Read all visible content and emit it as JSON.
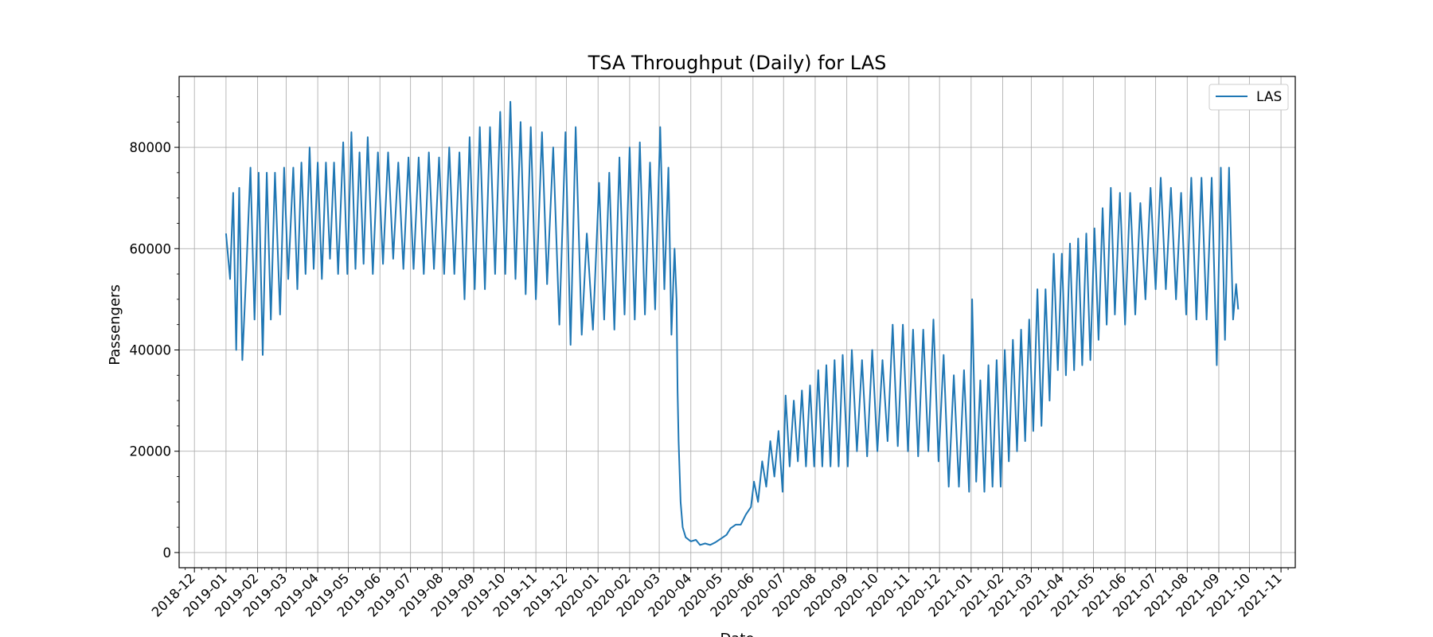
{
  "chart_data": {
    "type": "line",
    "title": "TSA Throughput (Daily) for LAS",
    "xlabel": "Date",
    "ylabel": "Passengers",
    "xlim": [
      "2018-11-16",
      "2021-11-15"
    ],
    "ylim": [
      -3000,
      94000
    ],
    "x_ticks": [
      "2018-12",
      "2019-01",
      "2019-02",
      "2019-03",
      "2019-04",
      "2019-05",
      "2019-06",
      "2019-07",
      "2019-08",
      "2019-09",
      "2019-10",
      "2019-11",
      "2019-12",
      "2020-01",
      "2020-02",
      "2020-03",
      "2020-04",
      "2020-05",
      "2020-06",
      "2020-07",
      "2020-08",
      "2020-09",
      "2020-10",
      "2020-11",
      "2020-12",
      "2021-01",
      "2021-02",
      "2021-03",
      "2021-04",
      "2021-05",
      "2021-06",
      "2021-07",
      "2021-08",
      "2021-09",
      "2021-10",
      "2021-11"
    ],
    "y_ticks": [
      0,
      20000,
      40000,
      60000,
      80000
    ],
    "grid": true,
    "legend_position": "top-right",
    "series": [
      {
        "name": "LAS",
        "color": "#1f77b4",
        "points": [
          [
            "2019-01-01",
            63000
          ],
          [
            "2019-01-05",
            54000
          ],
          [
            "2019-01-08",
            71000
          ],
          [
            "2019-01-11",
            40000
          ],
          [
            "2019-01-14",
            72000
          ],
          [
            "2019-01-17",
            38000
          ],
          [
            "2019-01-21",
            56000
          ],
          [
            "2019-01-25",
            76000
          ],
          [
            "2019-01-29",
            46000
          ],
          [
            "2019-02-02",
            75000
          ],
          [
            "2019-02-06",
            39000
          ],
          [
            "2019-02-10",
            75000
          ],
          [
            "2019-02-14",
            46000
          ],
          [
            "2019-02-18",
            75000
          ],
          [
            "2019-02-23",
            47000
          ],
          [
            "2019-02-27",
            76000
          ],
          [
            "2019-03-03",
            54000
          ],
          [
            "2019-03-08",
            76000
          ],
          [
            "2019-03-12",
            52000
          ],
          [
            "2019-03-16",
            77000
          ],
          [
            "2019-03-20",
            55000
          ],
          [
            "2019-03-24",
            80000
          ],
          [
            "2019-03-28",
            56000
          ],
          [
            "2019-04-01",
            77000
          ],
          [
            "2019-04-05",
            54000
          ],
          [
            "2019-04-09",
            77000
          ],
          [
            "2019-04-13",
            58000
          ],
          [
            "2019-04-17",
            77000
          ],
          [
            "2019-04-21",
            55000
          ],
          [
            "2019-04-26",
            81000
          ],
          [
            "2019-04-30",
            55000
          ],
          [
            "2019-05-04",
            83000
          ],
          [
            "2019-05-08",
            56000
          ],
          [
            "2019-05-12",
            79000
          ],
          [
            "2019-05-16",
            57000
          ],
          [
            "2019-05-20",
            82000
          ],
          [
            "2019-05-25",
            55000
          ],
          [
            "2019-05-30",
            79000
          ],
          [
            "2019-06-04",
            57000
          ],
          [
            "2019-06-09",
            79000
          ],
          [
            "2019-06-14",
            58000
          ],
          [
            "2019-06-19",
            77000
          ],
          [
            "2019-06-24",
            56000
          ],
          [
            "2019-06-29",
            78000
          ],
          [
            "2019-07-04",
            56000
          ],
          [
            "2019-07-09",
            78000
          ],
          [
            "2019-07-14",
            55000
          ],
          [
            "2019-07-19",
            79000
          ],
          [
            "2019-07-24",
            56000
          ],
          [
            "2019-07-29",
            78000
          ],
          [
            "2019-08-03",
            55000
          ],
          [
            "2019-08-08",
            80000
          ],
          [
            "2019-08-13",
            55000
          ],
          [
            "2019-08-18",
            79000
          ],
          [
            "2019-08-23",
            50000
          ],
          [
            "2019-08-28",
            82000
          ],
          [
            "2019-09-02",
            52000
          ],
          [
            "2019-09-07",
            84000
          ],
          [
            "2019-09-12",
            52000
          ],
          [
            "2019-09-17",
            84000
          ],
          [
            "2019-09-22",
            55000
          ],
          [
            "2019-09-27",
            87000
          ],
          [
            "2019-10-02",
            55000
          ],
          [
            "2019-10-07",
            89000
          ],
          [
            "2019-10-12",
            54000
          ],
          [
            "2019-10-17",
            85000
          ],
          [
            "2019-10-22",
            51000
          ],
          [
            "2019-10-27",
            84000
          ],
          [
            "2019-11-01",
            50000
          ],
          [
            "2019-11-07",
            83000
          ],
          [
            "2019-11-12",
            53000
          ],
          [
            "2019-11-18",
            80000
          ],
          [
            "2019-11-24",
            45000
          ],
          [
            "2019-11-30",
            83000
          ],
          [
            "2019-12-05",
            41000
          ],
          [
            "2019-12-10",
            84000
          ],
          [
            "2019-12-16",
            43000
          ],
          [
            "2019-12-21",
            63000
          ],
          [
            "2019-12-27",
            44000
          ],
          [
            "2020-01-02",
            73000
          ],
          [
            "2020-01-07",
            46000
          ],
          [
            "2020-01-12",
            75000
          ],
          [
            "2020-01-17",
            44000
          ],
          [
            "2020-01-22",
            78000
          ],
          [
            "2020-01-27",
            47000
          ],
          [
            "2020-02-01",
            80000
          ],
          [
            "2020-02-06",
            46000
          ],
          [
            "2020-02-11",
            81000
          ],
          [
            "2020-02-16",
            47000
          ],
          [
            "2020-02-21",
            77000
          ],
          [
            "2020-02-26",
            48000
          ],
          [
            "2020-03-02",
            84000
          ],
          [
            "2020-03-06",
            52000
          ],
          [
            "2020-03-10",
            76000
          ],
          [
            "2020-03-13",
            43000
          ],
          [
            "2020-03-16",
            60000
          ],
          [
            "2020-03-18",
            50000
          ],
          [
            "2020-03-19",
            32000
          ],
          [
            "2020-03-20",
            22000
          ],
          [
            "2020-03-22",
            10000
          ],
          [
            "2020-03-24",
            5000
          ],
          [
            "2020-03-27",
            3000
          ],
          [
            "2020-04-01",
            2200
          ],
          [
            "2020-04-06",
            2500
          ],
          [
            "2020-04-10",
            1500
          ],
          [
            "2020-04-15",
            1800
          ],
          [
            "2020-04-20",
            1500
          ],
          [
            "2020-04-25",
            2000
          ],
          [
            "2020-05-01",
            2800
          ],
          [
            "2020-05-06",
            3500
          ],
          [
            "2020-05-10",
            4800
          ],
          [
            "2020-05-15",
            5500
          ],
          [
            "2020-05-20",
            5500
          ],
          [
            "2020-05-25",
            7500
          ],
          [
            "2020-05-30",
            9000
          ],
          [
            "2020-06-02",
            14000
          ],
          [
            "2020-06-06",
            10000
          ],
          [
            "2020-06-10",
            18000
          ],
          [
            "2020-06-14",
            13000
          ],
          [
            "2020-06-18",
            22000
          ],
          [
            "2020-06-22",
            15000
          ],
          [
            "2020-06-26",
            24000
          ],
          [
            "2020-06-30",
            12000
          ],
          [
            "2020-07-03",
            31000
          ],
          [
            "2020-07-07",
            17000
          ],
          [
            "2020-07-11",
            30000
          ],
          [
            "2020-07-15",
            18000
          ],
          [
            "2020-07-19",
            32000
          ],
          [
            "2020-07-23",
            17000
          ],
          [
            "2020-07-27",
            33000
          ],
          [
            "2020-07-31",
            17000
          ],
          [
            "2020-08-04",
            36000
          ],
          [
            "2020-08-08",
            17000
          ],
          [
            "2020-08-12",
            37000
          ],
          [
            "2020-08-16",
            17000
          ],
          [
            "2020-08-20",
            38000
          ],
          [
            "2020-08-24",
            17000
          ],
          [
            "2020-08-28",
            39000
          ],
          [
            "2020-09-02",
            17000
          ],
          [
            "2020-09-06",
            40000
          ],
          [
            "2020-09-11",
            20000
          ],
          [
            "2020-09-16",
            38000
          ],
          [
            "2020-09-21",
            19000
          ],
          [
            "2020-09-26",
            40000
          ],
          [
            "2020-10-01",
            20000
          ],
          [
            "2020-10-06",
            38000
          ],
          [
            "2020-10-11",
            22000
          ],
          [
            "2020-10-16",
            45000
          ],
          [
            "2020-10-21",
            21000
          ],
          [
            "2020-10-26",
            45000
          ],
          [
            "2020-10-31",
            20000
          ],
          [
            "2020-11-05",
            44000
          ],
          [
            "2020-11-10",
            19000
          ],
          [
            "2020-11-15",
            44000
          ],
          [
            "2020-11-20",
            20000
          ],
          [
            "2020-11-25",
            46000
          ],
          [
            "2020-11-30",
            18000
          ],
          [
            "2020-12-05",
            39000
          ],
          [
            "2020-12-10",
            13000
          ],
          [
            "2020-12-15",
            35000
          ],
          [
            "2020-12-20",
            13000
          ],
          [
            "2020-12-25",
            36000
          ],
          [
            "2020-12-30",
            12000
          ],
          [
            "2021-01-02",
            50000
          ],
          [
            "2021-01-06",
            14000
          ],
          [
            "2021-01-10",
            34000
          ],
          [
            "2021-01-14",
            12000
          ],
          [
            "2021-01-18",
            37000
          ],
          [
            "2021-01-22",
            13000
          ],
          [
            "2021-01-26",
            38000
          ],
          [
            "2021-01-30",
            13000
          ],
          [
            "2021-02-03",
            40000
          ],
          [
            "2021-02-07",
            18000
          ],
          [
            "2021-02-11",
            42000
          ],
          [
            "2021-02-15",
            20000
          ],
          [
            "2021-02-19",
            44000
          ],
          [
            "2021-02-23",
            22000
          ],
          [
            "2021-02-27",
            46000
          ],
          [
            "2021-03-03",
            24000
          ],
          [
            "2021-03-07",
            52000
          ],
          [
            "2021-03-11",
            25000
          ],
          [
            "2021-03-15",
            52000
          ],
          [
            "2021-03-19",
            30000
          ],
          [
            "2021-03-23",
            59000
          ],
          [
            "2021-03-27",
            36000
          ],
          [
            "2021-03-31",
            59000
          ],
          [
            "2021-04-04",
            35000
          ],
          [
            "2021-04-08",
            61000
          ],
          [
            "2021-04-12",
            36000
          ],
          [
            "2021-04-16",
            62000
          ],
          [
            "2021-04-20",
            37000
          ],
          [
            "2021-04-24",
            63000
          ],
          [
            "2021-04-28",
            38000
          ],
          [
            "2021-05-02",
            64000
          ],
          [
            "2021-05-06",
            42000
          ],
          [
            "2021-05-10",
            68000
          ],
          [
            "2021-05-14",
            45000
          ],
          [
            "2021-05-18",
            72000
          ],
          [
            "2021-05-22",
            47000
          ],
          [
            "2021-05-27",
            71000
          ],
          [
            "2021-06-01",
            45000
          ],
          [
            "2021-06-06",
            71000
          ],
          [
            "2021-06-11",
            47000
          ],
          [
            "2021-06-16",
            69000
          ],
          [
            "2021-06-21",
            50000
          ],
          [
            "2021-06-26",
            72000
          ],
          [
            "2021-07-01",
            52000
          ],
          [
            "2021-07-06",
            74000
          ],
          [
            "2021-07-11",
            52000
          ],
          [
            "2021-07-16",
            72000
          ],
          [
            "2021-07-21",
            50000
          ],
          [
            "2021-07-26",
            71000
          ],
          [
            "2021-07-31",
            47000
          ],
          [
            "2021-08-05",
            74000
          ],
          [
            "2021-08-10",
            46000
          ],
          [
            "2021-08-15",
            74000
          ],
          [
            "2021-08-20",
            46000
          ],
          [
            "2021-08-25",
            74000
          ],
          [
            "2021-08-30",
            37000
          ],
          [
            "2021-09-03",
            76000
          ],
          [
            "2021-09-07",
            42000
          ],
          [
            "2021-09-11",
            76000
          ],
          [
            "2021-09-15",
            46000
          ],
          [
            "2021-09-18",
            53000
          ],
          [
            "2021-09-20",
            48000
          ]
        ]
      }
    ]
  }
}
